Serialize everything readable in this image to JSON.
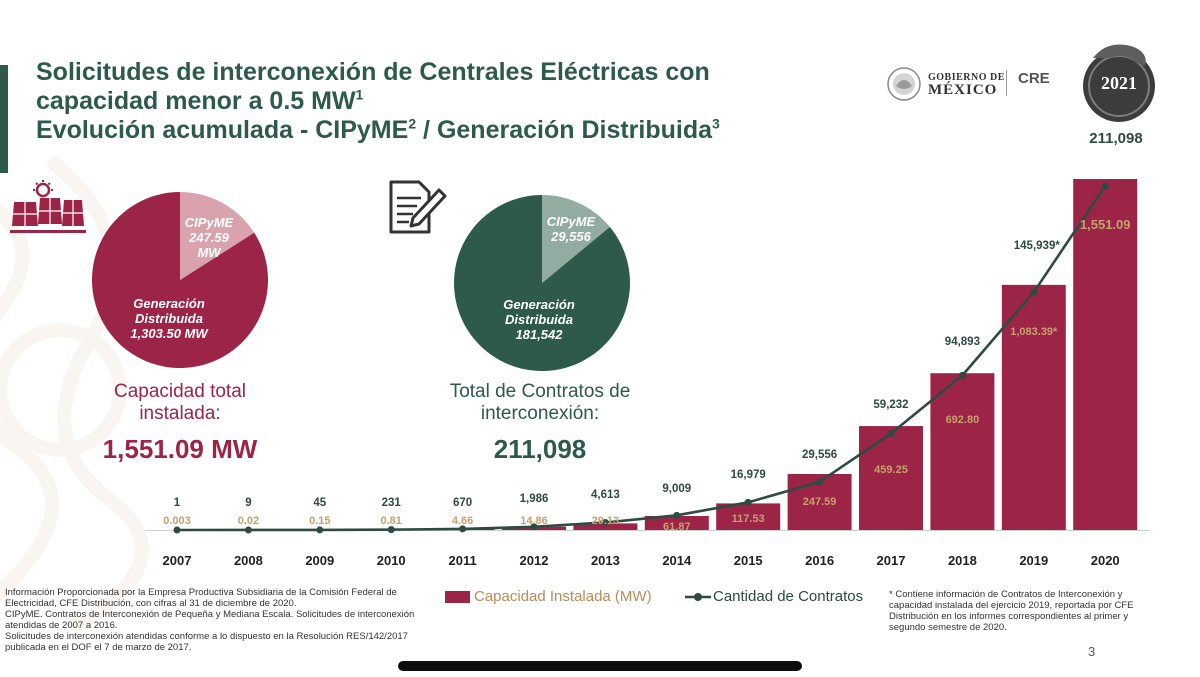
{
  "header": {
    "title_line1": "Solicitudes de interconexión de Centrales Eléctricas con",
    "title_line2": "capacidad menor a 0.5 MW",
    "title_line2_sup": "1",
    "title_line3": "Evolución acumulada - CIPyME",
    "title_line3_sup": "2",
    "title_line3_rest": " / Generación Distribuida",
    "title_line3_sup2": "3"
  },
  "logos": {
    "gobierno_line1": "GOBIERNO DE",
    "gobierno_line2": "MÉXICO",
    "cre": "CRE",
    "badge_year": "2021",
    "top_value": "211,098"
  },
  "colors": {
    "crimson": "#9c2447",
    "crimson_light": "#d9a2ad",
    "green": "#2d5a4b",
    "green_light": "#93aca1",
    "gold": "#c7a06b"
  },
  "icons": {
    "solar": "solar-panel-icon",
    "document": "document-pen-icon"
  },
  "capacity_summary": {
    "pie_cipyme_label": "CIPyME",
    "pie_cipyme_value": "247.59",
    "pie_cipyme_unit": "MW",
    "pie_gd_label_1": "Generación",
    "pie_gd_label_2": "Distribuida",
    "pie_gd_value": "1,303.50 MW",
    "caption_line1": "Capacidad total",
    "caption_line2": "instalada:",
    "total": "1,551.09 MW"
  },
  "contracts_summary": {
    "pie_cipyme_label": "CIPyME",
    "pie_cipyme_value": "29,556",
    "pie_gd_label_1": "Generación",
    "pie_gd_label_2": "Distribuida",
    "pie_gd_value": "181,542",
    "caption_line1": "Total de Contratos de",
    "caption_line2": "interconexión:",
    "total": "211,098"
  },
  "legend": {
    "bars": "Capacidad Instalada (MW)",
    "line": "Cantidad de Contratos"
  },
  "footnotes": [
    "Información Proporcionada por la Empresa Productiva Subsidiaria de la Comisión Federal de Electricidad, CFE Distribución, con cifras al 31 de diciembre de 2020.",
    "CIPyME. Contratos de Interconexión de Pequeña y Mediana Escala. Solicitudes de interconexión atendidas de 2007 a 2016.",
    "Solicitudes de interconexión atendidas conforme a lo dispuesto en la Resolución RES/142/2017 publicada en el DOF el 7 de marzo de 2017."
  ],
  "asterisk_note": "* Contiene información de Contratos de Interconexión y capacidad instalada del ejercicio 2019, reportada por CFE Distribución en los informes correspondientes al primer y segundo semestre de 2020.",
  "page_number": "3",
  "chart_data": [
    {
      "type": "pie",
      "slices": [
        {
          "label": "CIPyME",
          "value": 247.59
        },
        {
          "label": "Generación Distribuida",
          "value": 1303.5
        }
      ]
    },
    {
      "type": "pie",
      "slices": [
        {
          "label": "CIPyME",
          "value": 29556
        },
        {
          "label": "Generación Distribuida",
          "value": 181542
        }
      ]
    },
    {
      "type": "bar",
      "categories": [
        "2007",
        "2008",
        "2009",
        "2010",
        "2011",
        "2012",
        "2013",
        "2014",
        "2015",
        "2016",
        "2017",
        "2018",
        "2019",
        "2020"
      ],
      "series": [
        {
          "name": "Capacidad Instalada (MW)",
          "type": "bar",
          "values": [
            0.003,
            0.02,
            0.15,
            0.81,
            4.66,
            14.86,
            29.13,
            61.87,
            117.53,
            247.59,
            459.25,
            692.8,
            1083.39,
            1551.09
          ],
          "labels": [
            "0.003",
            "0.02",
            "0.15",
            "0.81",
            "4.66",
            "14.86",
            "29.13",
            "61.87",
            "117.53",
            "247.59",
            "459.25",
            "692.80",
            "1,083.39*",
            "1,551.09"
          ]
        },
        {
          "name": "Cantidad de Contratos",
          "type": "line",
          "values": [
            1,
            9,
            45,
            231,
            670,
            1986,
            4613,
            9009,
            16979,
            29556,
            59232,
            94893,
            145939,
            211098
          ],
          "labels": [
            "1",
            "9",
            "45",
            "231",
            "670",
            "1,986",
            "4,613",
            "9,009",
            "16,979",
            "29,556",
            "59,232",
            "94,893",
            "145,939*",
            ""
          ]
        }
      ],
      "legend": "bottom"
    }
  ]
}
